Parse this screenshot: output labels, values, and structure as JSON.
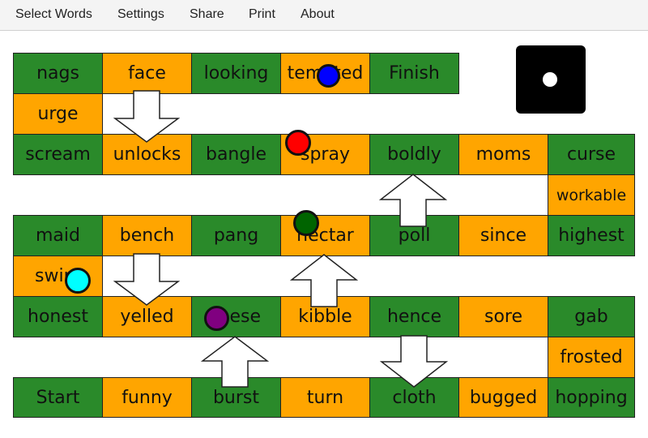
{
  "menu": {
    "items": [
      "Select Words",
      "Settings",
      "Share",
      "Print",
      "About"
    ]
  },
  "colors": {
    "green_cell": "#2a8a2a",
    "orange_cell": "#ffa500",
    "die": "#000000",
    "tokens": [
      "#0000ff",
      "#ff0000",
      "#006400",
      "#00ffff",
      "#800080"
    ]
  },
  "board": {
    "row1": [
      "nags",
      "face",
      "looking",
      "tempted",
      "Finish"
    ],
    "row2": [
      "urge"
    ],
    "row3": [
      "scream",
      "unlocks",
      "bangle",
      "spray",
      "boldly",
      "moms",
      "curse"
    ],
    "row4": [
      "workable"
    ],
    "row5": [
      "maid",
      "bench",
      "pang",
      "nectar",
      "poll",
      "since",
      "highest"
    ],
    "row6": [
      "swim"
    ],
    "row7": [
      "honest",
      "yelled",
      "these",
      "kibble",
      "hence",
      "sore",
      "gab"
    ],
    "row8": [
      "frosted"
    ],
    "row9": [
      "Start",
      "funny",
      "burst",
      "turn",
      "cloth",
      "bugged",
      "hopping"
    ]
  },
  "die": {
    "value": 1,
    "icon": "die-face-one-icon"
  },
  "tokens": [
    {
      "color": "#0000ff",
      "icon": "blue-token-icon"
    },
    {
      "color": "#ff0000",
      "icon": "red-token-icon"
    },
    {
      "color": "#006400",
      "icon": "green-token-icon"
    },
    {
      "color": "#00ffff",
      "icon": "cyan-token-icon"
    },
    {
      "color": "#800080",
      "icon": "purple-token-icon"
    }
  ]
}
